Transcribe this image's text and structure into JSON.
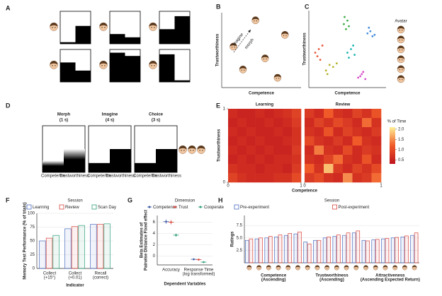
{
  "chart_data": [
    {
      "panel": "A",
      "type": "stimulus",
      "values": [
        [
          0.05,
          0.55
        ],
        [
          0.3,
          0.2
        ],
        [
          0.45,
          0.85
        ],
        [
          0.6,
          0.35
        ],
        [
          0.9,
          0.8
        ],
        [
          0.85,
          0.05
        ]
      ]
    },
    {
      "panel": "B",
      "type": "scatter",
      "x_label": "Competence",
      "y_label": "Trustworthiness",
      "xlim": [
        0,
        1
      ],
      "ylim": [
        0,
        1
      ],
      "x": [
        0.42,
        0.82,
        0.12,
        0.55,
        0.25,
        0.72
      ],
      "y": [
        0.93,
        0.72,
        0.55,
        0.38,
        0.22,
        0.1
      ],
      "annotations": [
        "imagine",
        "morph"
      ]
    },
    {
      "panel": "C",
      "type": "scatter",
      "x_label": "Competence",
      "y_label": "Trustworthiness",
      "legend_title": "Avatar",
      "xlim": [
        0,
        1
      ],
      "ylim": [
        0,
        1
      ],
      "series": [
        {
          "color": "#e8593c",
          "x": [
            0.05,
            0.1,
            0.08,
            0.15,
            0.12
          ],
          "y": [
            0.45,
            0.5,
            0.4,
            0.55,
            0.35
          ]
        },
        {
          "color": "#b7b22b",
          "x": [
            0.2,
            0.25,
            0.3,
            0.22,
            0.35
          ],
          "y": [
            0.2,
            0.28,
            0.25,
            0.15,
            0.3
          ]
        },
        {
          "color": "#3fae49",
          "x": [
            0.45,
            0.5,
            0.48,
            0.52,
            0.46
          ],
          "y": [
            0.85,
            0.9,
            0.78,
            0.82,
            0.95
          ]
        },
        {
          "color": "#1fb5b5",
          "x": [
            0.5,
            0.55,
            0.6,
            0.52,
            0.58
          ],
          "y": [
            0.45,
            0.5,
            0.42,
            0.38,
            0.55
          ]
        },
        {
          "color": "#4a90d9",
          "x": [
            0.78,
            0.82,
            0.85,
            0.8,
            0.88
          ],
          "y": [
            0.72,
            0.75,
            0.68,
            0.8,
            0.7
          ]
        },
        {
          "color": "#d64fc9",
          "x": [
            0.65,
            0.7,
            0.75,
            0.68,
            0.72
          ],
          "y": [
            0.1,
            0.15,
            0.08,
            0.12,
            0.18
          ]
        }
      ]
    },
    {
      "panel": "D",
      "type": "trial",
      "x_labels": [
        "Competence",
        "Trustworthiness"
      ],
      "stages": [
        {
          "title": "Morph",
          "duration": "(1 s)",
          "values": [
            0.25,
            0.5
          ]
        },
        {
          "title": "Imagine",
          "duration": "(4 s)",
          "values": [
            0.2,
            0.5
          ]
        },
        {
          "title": "Choice",
          "duration": "(3 s)",
          "values": [
            0.2,
            0.5
          ]
        }
      ]
    },
    {
      "panel": "E",
      "type": "heatmap",
      "x_label": "Competence",
      "y_label": "Trustworthiness",
      "legend_title": "% of Time",
      "xlim": [
        0,
        1
      ],
      "ylim": [
        0,
        1
      ],
      "xticks": [
        0,
        1
      ],
      "yticks": [
        0,
        1
      ],
      "zlim": [
        0.3,
        2.1
      ],
      "colorbar_ticks": [
        {
          "value": 2,
          "label": "2.0"
        },
        1.5,
        {
          "value": 1,
          "label": "1.0"
        },
        0.5
      ],
      "maps": [
        {
          "title": "Learning",
          "values": [
            [
              0.6,
              0.5,
              0.5,
              0.6,
              0.5,
              0.6,
              0.7,
              0.9
            ],
            [
              0.5,
              0.6,
              0.5,
              0.5,
              0.6,
              0.5,
              0.6,
              0.8
            ],
            [
              0.6,
              0.5,
              0.6,
              0.5,
              0.5,
              0.6,
              0.5,
              0.7
            ],
            [
              0.5,
              0.6,
              0.5,
              0.6,
              0.5,
              0.5,
              0.6,
              0.7
            ],
            [
              0.6,
              0.5,
              0.6,
              0.5,
              0.6,
              0.5,
              0.5,
              0.8
            ],
            [
              0.5,
              0.6,
              0.5,
              0.6,
              0.5,
              0.6,
              0.6,
              0.7
            ],
            [
              0.7,
              0.6,
              0.6,
              0.5,
              0.6,
              0.6,
              0.5,
              0.8
            ],
            [
              0.9,
              0.7,
              0.6,
              0.6,
              0.6,
              0.7,
              0.7,
              1.0
            ]
          ]
        },
        {
          "title": "Review",
          "values": [
            [
              0.8,
              0.6,
              1.2,
              0.7,
              0.6,
              0.9,
              0.7,
              1.1
            ],
            [
              0.6,
              0.9,
              0.7,
              1.0,
              0.8,
              0.6,
              1.3,
              0.7
            ],
            [
              0.7,
              0.6,
              1.1,
              0.6,
              0.9,
              0.7,
              0.6,
              0.8
            ],
            [
              1.0,
              0.7,
              0.6,
              0.8,
              0.6,
              1.2,
              0.7,
              0.6
            ],
            [
              0.6,
              1.4,
              0.7,
              0.6,
              1.0,
              0.6,
              0.8,
              0.7
            ],
            [
              0.7,
              0.6,
              0.9,
              1.3,
              0.7,
              0.6,
              1.1,
              0.6
            ],
            [
              1.2,
              0.7,
              1.8,
              0.8,
              0.6,
              0.9,
              0.7,
              1.0
            ],
            [
              0.8,
              1.0,
              0.7,
              0.6,
              1.5,
              0.7,
              0.8,
              1.3
            ]
          ]
        }
      ]
    },
    {
      "panel": "F",
      "type": "bar",
      "legend_title": "Session",
      "x_label": "Indicator",
      "y_label": "Memory Test Performance (% of trials)",
      "categories": [
        [
          "Collect",
          "(+15°)"
        ],
        [
          "Collect",
          "(+0.01)"
        ],
        [
          "Recall",
          "(correct)"
        ]
      ],
      "series": [
        {
          "name": "Learning",
          "color": "#4a6cbf",
          "values": [
            50,
            72,
            80
          ]
        },
        {
          "name": "Review",
          "color": "#d9473f",
          "values": [
            55,
            76,
            80
          ]
        },
        {
          "name": "Scan Day",
          "color": "#2f9e7a",
          "values": [
            60,
            78,
            81
          ]
        }
      ],
      "ylim": [
        0,
        100
      ],
      "yticks": [
        0,
        25,
        50,
        75,
        100
      ],
      "grid": true
    },
    {
      "panel": "G",
      "type": "errorbar",
      "legend_title": "Dimension",
      "x_label": "Dependent Variables",
      "y_label": [
        "Beta Estimates of",
        "Pairwise Distance Fixed effect"
      ],
      "categories": [
        [
          "Accuracy"
        ],
        [
          "Response Time",
          "(log transformed)"
        ]
      ],
      "series": [
        {
          "name": "Competence",
          "color": "#3b5ba5",
          "values": [
            6.1,
            -0.6
          ],
          "errors": [
            0.4,
            0.15
          ]
        },
        {
          "name": "Trust",
          "color": "#d9473f",
          "values": [
            6.0,
            -0.65
          ],
          "errors": [
            0.4,
            0.15
          ]
        },
        {
          "name": "Cooperate",
          "color": "#2f9e7a",
          "values": [
            3.7,
            -1.1
          ],
          "errors": [
            0.3,
            0.15
          ]
        }
      ],
      "ylim": [
        -1.6,
        7.2
      ],
      "yticks": [
        0,
        2,
        4,
        6
      ],
      "grid": true
    },
    {
      "panel": "H",
      "type": "bar",
      "legend_title": "Session",
      "y_label": "Ratings",
      "groups": [
        [
          "Competence",
          "(Ascending)"
        ],
        [
          "Trustworthiness",
          "(Ascending)"
        ],
        [
          "Attractiveness",
          "(Ascending Expected Return)"
        ]
      ],
      "series": [
        {
          "name": "Pre-experiment",
          "color": "#4a6cbf",
          "values": [
            4.5,
            4.8,
            5.0,
            5.2,
            5.5,
            5.8,
            4.2,
            4.5,
            5.0,
            5.3,
            5.5,
            6.0,
            4.5,
            4.6,
            4.8,
            5.0,
            5.2,
            5.5
          ]
        },
        {
          "name": "Post-experiment",
          "color": "#d9473f",
          "values": [
            4.8,
            5.0,
            5.3,
            5.6,
            5.9,
            6.2,
            3.8,
            4.5,
            5.2,
            5.6,
            6.0,
            6.4,
            4.4,
            4.7,
            4.9,
            5.1,
            5.4,
            6.0
          ]
        }
      ],
      "ylim": [
        0,
        9.5
      ],
      "yticks": [
        2.5,
        {
          "value": 5,
          "label": "5.0"
        },
        7.5
      ],
      "grid": true
    }
  ]
}
